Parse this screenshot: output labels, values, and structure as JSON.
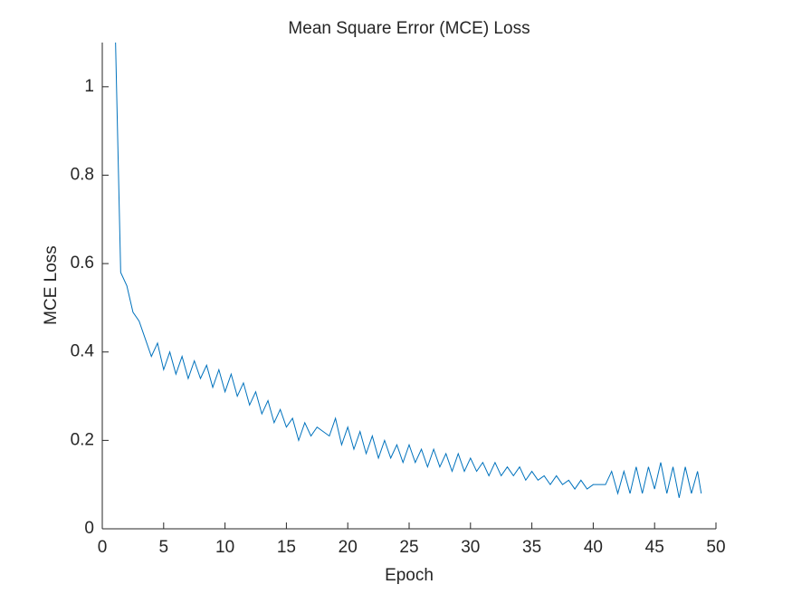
{
  "chart_data": {
    "type": "line",
    "title": "Mean Square Error (MCE) Loss",
    "x_label": "Epoch",
    "y_label": "MCE Loss",
    "xlim": [
      0,
      50
    ],
    "ylim": [
      0,
      1.1
    ],
    "xticks": [
      0,
      5,
      10,
      15,
      20,
      25,
      30,
      35,
      40,
      45,
      50
    ],
    "yticks": [
      0,
      0.2,
      0.4,
      0.6,
      0.8,
      1
    ],
    "grid": false,
    "series": [
      {
        "color": "#0072bd",
        "x": [
          1,
          1.5,
          2,
          2.5,
          3,
          3.5,
          4,
          4.5,
          5,
          5.5,
          6,
          6.5,
          7,
          7.5,
          8,
          8.5,
          9,
          9.5,
          10,
          10.5,
          11,
          11.5,
          12,
          12.5,
          13,
          13.5,
          14,
          14.5,
          15,
          15.5,
          16,
          16.5,
          17,
          17.5,
          18,
          18.5,
          19,
          19.5,
          20,
          20.5,
          21,
          21.5,
          22,
          22.5,
          23,
          23.5,
          24,
          24.5,
          25,
          25.5,
          26,
          26.5,
          27,
          27.5,
          28,
          28.5,
          29,
          29.5,
          30,
          30.5,
          31,
          31.5,
          32,
          32.5,
          33,
          33.5,
          34,
          34.5,
          35,
          35.5,
          36,
          36.5,
          37,
          37.5,
          38,
          38.5,
          39,
          39.5,
          40,
          40.5,
          41,
          41.5,
          42,
          42.5,
          43,
          43.5,
          44,
          44.5,
          45,
          45.5,
          46,
          46.5,
          47,
          47.5,
          48,
          48.5,
          48.8
        ],
        "values": [
          1.2,
          0.58,
          0.55,
          0.49,
          0.47,
          0.43,
          0.39,
          0.42,
          0.36,
          0.4,
          0.35,
          0.39,
          0.34,
          0.38,
          0.34,
          0.37,
          0.32,
          0.36,
          0.31,
          0.35,
          0.3,
          0.33,
          0.28,
          0.31,
          0.26,
          0.29,
          0.24,
          0.27,
          0.23,
          0.25,
          0.2,
          0.24,
          0.21,
          0.23,
          0.22,
          0.21,
          0.25,
          0.19,
          0.23,
          0.18,
          0.22,
          0.17,
          0.21,
          0.16,
          0.2,
          0.16,
          0.19,
          0.15,
          0.19,
          0.15,
          0.18,
          0.14,
          0.18,
          0.14,
          0.17,
          0.13,
          0.17,
          0.13,
          0.16,
          0.13,
          0.15,
          0.12,
          0.15,
          0.12,
          0.14,
          0.12,
          0.14,
          0.11,
          0.13,
          0.11,
          0.12,
          0.1,
          0.12,
          0.1,
          0.11,
          0.09,
          0.11,
          0.09,
          0.1,
          0.1,
          0.1,
          0.13,
          0.08,
          0.13,
          0.08,
          0.14,
          0.08,
          0.14,
          0.09,
          0.15,
          0.08,
          0.14,
          0.07,
          0.14,
          0.08,
          0.13,
          0.08
        ]
      }
    ]
  }
}
